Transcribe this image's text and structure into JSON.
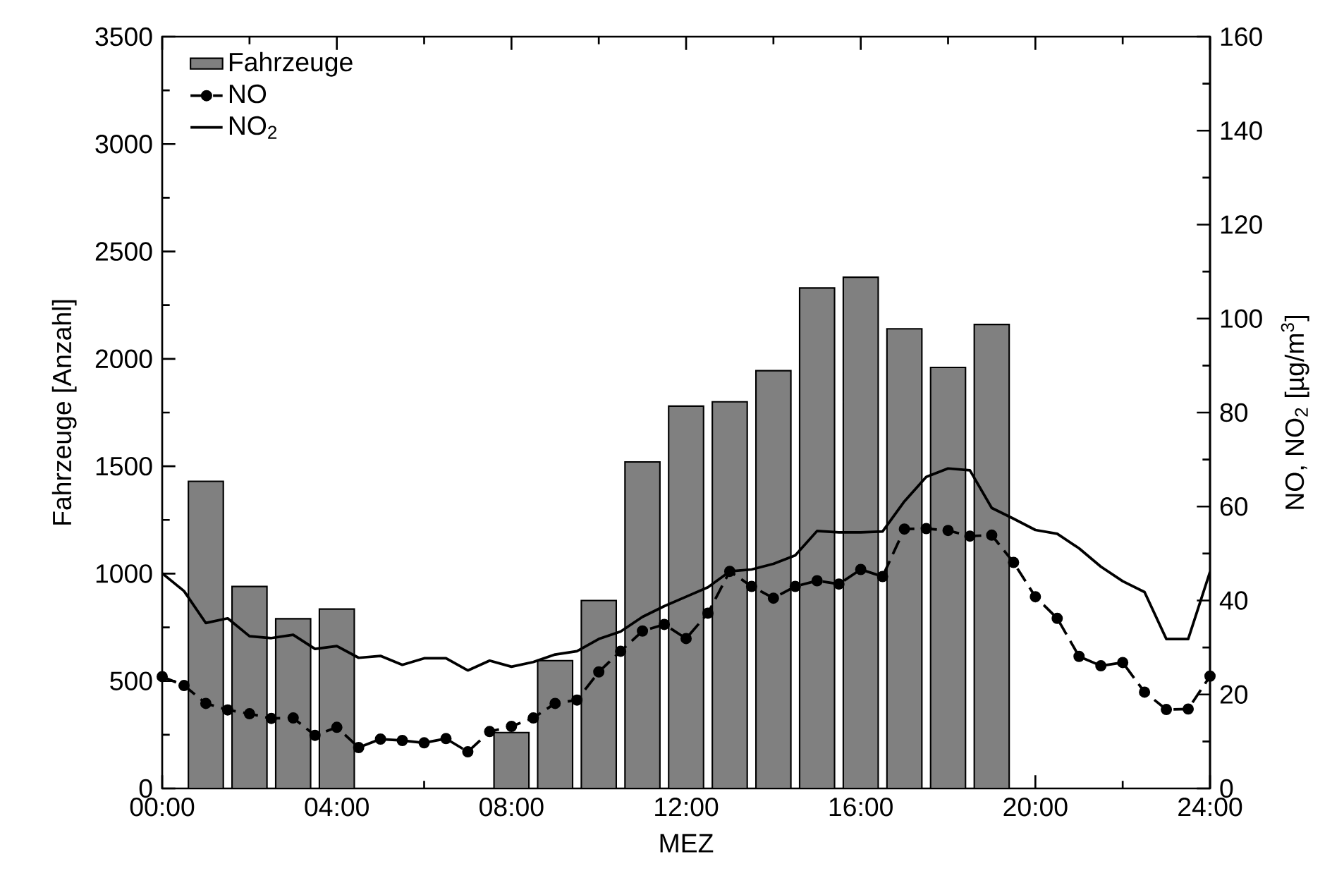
{
  "chart_data": {
    "type": "bar",
    "xlabel": "MEZ",
    "ylabel": "Fahrzeuge [Anzahl]",
    "y2label": "NO, NO$_{2}$ [µg/m$^{3}$]",
    "legend": "top left",
    "xlim": [
      0,
      24
    ],
    "xticks": [
      {
        "value": 0,
        "label": "00:00"
      },
      {
        "value": 4,
        "label": "04:00"
      },
      {
        "value": 8,
        "label": "08:00"
      },
      {
        "value": 12,
        "label": "12:00"
      },
      {
        "value": 16,
        "label": "16:00"
      },
      {
        "value": 20,
        "label": "20:00"
      },
      {
        "value": 24,
        "label": "24:00"
      }
    ],
    "ylim": [
      0,
      3500
    ],
    "yticks": [
      0,
      500,
      1000,
      1500,
      2000,
      2500,
      3000,
      3500
    ],
    "y2lim": [
      0,
      160
    ],
    "y2ticks": [
      0,
      20,
      40,
      60,
      80,
      100,
      120,
      140,
      160
    ],
    "series": [
      {
        "name": "Fahrzeuge",
        "color": "#808080",
        "x": [
          1,
          2,
          3,
          4,
          8,
          9,
          10,
          11,
          12,
          13,
          14,
          15,
          16,
          17,
          18,
          19
        ],
        "values": [
          1430,
          940,
          790,
          835,
          260,
          595,
          875,
          1520,
          1780,
          1800,
          1945,
          2330,
          2380,
          2140,
          1960,
          2160
        ]
      },
      {
        "name": "NO",
        "type": "line",
        "axis": "y2",
        "color": "#000000",
        "marker": "circle",
        "line_style": "dashed",
        "x": [
          0,
          0.5,
          1,
          1.5,
          2,
          2.5,
          3,
          3.5,
          4,
          4.5,
          5,
          5.5,
          6,
          6.5,
          7,
          7.5,
          8,
          8.5,
          9,
          9.5,
          10,
          10.5,
          11,
          11.5,
          12,
          12.5,
          13,
          13.5,
          14,
          14.5,
          15,
          15.5,
          16,
          16.5,
          17,
          17.5,
          18,
          18.5,
          19,
          19.5,
          20,
          20.5,
          21,
          21.5,
          22,
          22.5,
          23,
          23.5,
          24
        ],
        "values": [
          23.8,
          21.9,
          18.1,
          16.7,
          15.9,
          14.9,
          15.0,
          11.3,
          13.0,
          8.7,
          10.5,
          10.2,
          9.7,
          10.6,
          7.8,
          12.1,
          13.2,
          15.0,
          18.1,
          18.8,
          24.8,
          29.2,
          33.5,
          34.9,
          31.9,
          37.3,
          46.2,
          43.0,
          40.5,
          43.0,
          44.2,
          43.5,
          46.6,
          45.1,
          55.2,
          55.3,
          54.9,
          53.7,
          53.9,
          48.1,
          40.8,
          36.2,
          28.1,
          26.1,
          26.8,
          20.5,
          16.8,
          16.9,
          23.9
        ]
      },
      {
        "name": "NO$_{2}$",
        "type": "line",
        "axis": "y2",
        "color": "#000000",
        "line_style": "solid",
        "x": [
          0,
          0.5,
          1,
          1.5,
          2,
          2.5,
          3,
          3.5,
          4,
          4.5,
          5,
          5.5,
          6,
          6.5,
          7,
          7.5,
          8,
          8.5,
          9,
          9.5,
          10,
          10.5,
          11,
          11.5,
          12,
          12.5,
          13,
          13.5,
          14,
          14.5,
          15,
          15.5,
          16,
          16.5,
          17,
          17.5,
          18,
          18.5,
          19,
          19.5,
          20,
          20.5,
          21,
          21.5,
          22,
          22.5,
          23,
          23.5,
          24
        ],
        "values": [
          45.8,
          42.0,
          35.2,
          36.2,
          32.4,
          32.0,
          32.7,
          29.7,
          30.3,
          27.8,
          28.2,
          26.3,
          27.7,
          27.7,
          25.1,
          27.2,
          25.9,
          26.9,
          28.5,
          29.2,
          31.8,
          33.4,
          36.5,
          38.8,
          40.8,
          42.8,
          46.2,
          46.6,
          47.8,
          49.6,
          54.8,
          54.5,
          54.5,
          54.7,
          61.1,
          66.3,
          68.1,
          67.7,
          59.7,
          57.4,
          55.0,
          54.2,
          51.1,
          47.2,
          44.1,
          41.8,
          31.8,
          31.8,
          46.1
        ]
      }
    ]
  }
}
